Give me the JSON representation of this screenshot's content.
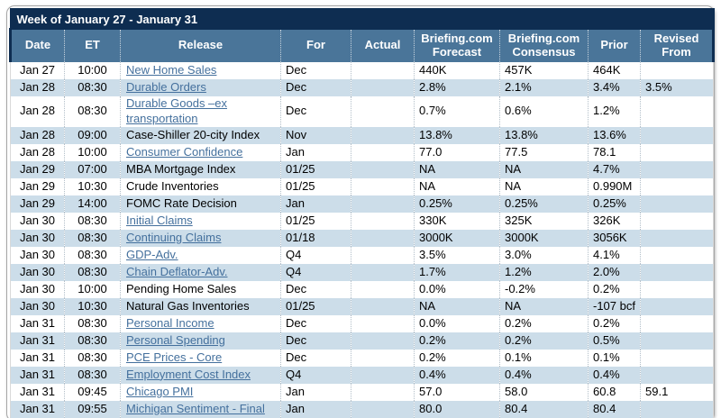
{
  "title": "Week of January 27 - January 31",
  "columns": [
    "Date",
    "ET",
    "Release",
    "For",
    "Actual",
    "Briefing.com Forecast",
    "Briefing.com Consensus",
    "Prior",
    "Revised From"
  ],
  "colors": {
    "title_bar": "#0e2d51",
    "header_bg": "#4a7599",
    "row_alt": "#ccdde9",
    "link": "#44709d",
    "panel_border": "#a6a6a6"
  },
  "rows": [
    {
      "date": "Jan 27",
      "et": "10:00",
      "release": "New Home Sales",
      "link": true,
      "for": "Dec",
      "actual": "",
      "forecast": "440K",
      "consensus": "457K",
      "prior": "464K",
      "revised": ""
    },
    {
      "date": "Jan 28",
      "et": "08:30",
      "release": "Durable Orders",
      "link": true,
      "for": "Dec",
      "actual": "",
      "forecast": "2.8%",
      "consensus": "2.1%",
      "prior": "3.4%",
      "revised": "3.5%"
    },
    {
      "date": "Jan 28",
      "et": "08:30",
      "release": "Durable Goods –ex transportation",
      "link": true,
      "for": "Dec",
      "actual": "",
      "forecast": "0.7%",
      "consensus": "0.6%",
      "prior": "1.2%",
      "revised": ""
    },
    {
      "date": "Jan 28",
      "et": "09:00",
      "release": "Case-Shiller 20-city Index",
      "link": false,
      "for": "Nov",
      "actual": "",
      "forecast": "13.8%",
      "consensus": "13.8%",
      "prior": "13.6%",
      "revised": ""
    },
    {
      "date": "Jan 28",
      "et": "10:00",
      "release": "Consumer Confidence",
      "link": true,
      "for": "Jan",
      "actual": "",
      "forecast": "77.0",
      "consensus": "77.5",
      "prior": "78.1",
      "revised": ""
    },
    {
      "date": "Jan 29",
      "et": "07:00",
      "release": "MBA Mortgage Index",
      "link": false,
      "for": "01/25",
      "actual": "",
      "forecast": "NA",
      "consensus": "NA",
      "prior": "4.7%",
      "revised": ""
    },
    {
      "date": "Jan 29",
      "et": "10:30",
      "release": "Crude Inventories",
      "link": false,
      "for": "01/25",
      "actual": "",
      "forecast": "NA",
      "consensus": "NA",
      "prior": "0.990M",
      "revised": ""
    },
    {
      "date": "Jan 29",
      "et": "14:00",
      "release": "FOMC Rate Decision",
      "link": false,
      "for": "Jan",
      "actual": "",
      "forecast": "0.25%",
      "consensus": "0.25%",
      "prior": "0.25%",
      "revised": ""
    },
    {
      "date": "Jan 30",
      "et": "08:30",
      "release": "Initial Claims",
      "link": true,
      "for": "01/25",
      "actual": "",
      "forecast": "330K",
      "consensus": "325K",
      "prior": "326K",
      "revised": ""
    },
    {
      "date": "Jan 30",
      "et": "08:30",
      "release": "Continuing Claims",
      "link": true,
      "for": "01/18",
      "actual": "",
      "forecast": "3000K",
      "consensus": "3000K",
      "prior": "3056K",
      "revised": ""
    },
    {
      "date": "Jan 30",
      "et": "08:30",
      "release": "GDP-Adv.",
      "link": true,
      "for": "Q4",
      "actual": "",
      "forecast": "3.5%",
      "consensus": "3.0%",
      "prior": "4.1%",
      "revised": ""
    },
    {
      "date": "Jan 30",
      "et": "08:30",
      "release": "Chain Deflator-Adv.",
      "link": true,
      "for": "Q4",
      "actual": "",
      "forecast": "1.7%",
      "consensus": "1.2%",
      "prior": "2.0%",
      "revised": ""
    },
    {
      "date": "Jan 30",
      "et": "10:00",
      "release": "Pending Home Sales",
      "link": false,
      "for": "Dec",
      "actual": "",
      "forecast": "0.0%",
      "consensus": "-0.2%",
      "prior": "0.2%",
      "revised": ""
    },
    {
      "date": "Jan 30",
      "et": "10:30",
      "release": "Natural Gas Inventories",
      "link": false,
      "for": "01/25",
      "actual": "",
      "forecast": "NA",
      "consensus": "NA",
      "prior": "-107 bcf",
      "revised": ""
    },
    {
      "date": "Jan 31",
      "et": "08:30",
      "release": "Personal Income",
      "link": true,
      "for": "Dec",
      "actual": "",
      "forecast": "0.0%",
      "consensus": "0.2%",
      "prior": "0.2%",
      "revised": ""
    },
    {
      "date": "Jan 31",
      "et": "08:30",
      "release": "Personal Spending",
      "link": true,
      "for": "Dec",
      "actual": "",
      "forecast": "0.2%",
      "consensus": "0.2%",
      "prior": "0.5%",
      "revised": ""
    },
    {
      "date": "Jan 31",
      "et": "08:30",
      "release": "PCE Prices - Core",
      "link": true,
      "for": "Dec",
      "actual": "",
      "forecast": "0.2%",
      "consensus": "0.1%",
      "prior": "0.1%",
      "revised": ""
    },
    {
      "date": "Jan 31",
      "et": "08:30",
      "release": "Employment Cost Index",
      "link": true,
      "for": "Q4",
      "actual": "",
      "forecast": "0.4%",
      "consensus": "0.4%",
      "prior": "0.4%",
      "revised": ""
    },
    {
      "date": "Jan 31",
      "et": "09:45",
      "release": "Chicago PMI",
      "link": true,
      "for": "Jan",
      "actual": "",
      "forecast": "57.0",
      "consensus": "58.0",
      "prior": "60.8",
      "revised": "59.1"
    },
    {
      "date": "Jan 31",
      "et": "09:55",
      "release": "Michigan Sentiment - Final",
      "link": true,
      "for": "Jan",
      "actual": "",
      "forecast": "80.0",
      "consensus": "80.4",
      "prior": "80.4",
      "revised": ""
    }
  ]
}
